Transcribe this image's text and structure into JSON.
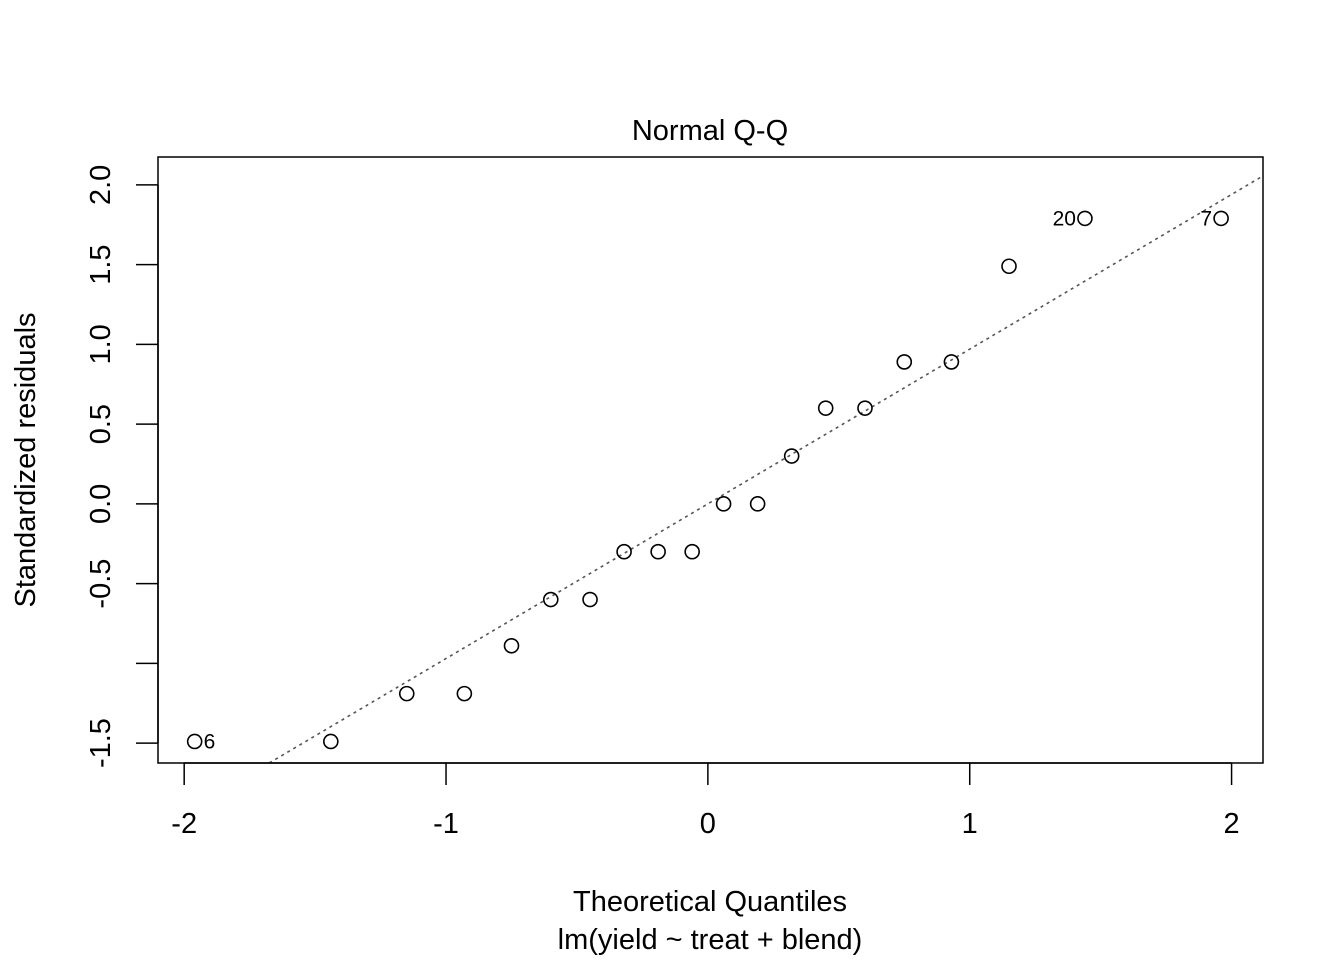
{
  "chart_data": {
    "type": "scatter",
    "title": "Normal Q-Q",
    "xlabel": "Theoretical Quantiles",
    "sub_caption": "lm(yield ~ treat + blend)",
    "ylabel": "Standardized residuals",
    "xlim": [
      -2.1,
      2.12
    ],
    "ylim": [
      -1.625,
      2.175
    ],
    "x_ticks": [
      -2,
      -1,
      0,
      1,
      2
    ],
    "x_tick_labels": [
      "-2",
      "-1",
      "0",
      "1",
      "2"
    ],
    "y_ticks": [
      -1.5,
      -1.0,
      -0.5,
      0.0,
      0.5,
      1.0,
      1.5,
      2.0
    ],
    "y_tick_labels": [
      "-1.5",
      "",
      "-0.5",
      "0.0",
      "0.5",
      "1.0",
      "1.5",
      "2.0"
    ],
    "grid": false,
    "points": [
      {
        "x": -1.96,
        "y": -1.49,
        "label": "6"
      },
      {
        "x": -1.44,
        "y": -1.49
      },
      {
        "x": -1.15,
        "y": -1.19
      },
      {
        "x": -0.93,
        "y": -1.19
      },
      {
        "x": -0.75,
        "y": -0.89
      },
      {
        "x": -0.6,
        "y": -0.6
      },
      {
        "x": -0.45,
        "y": -0.6
      },
      {
        "x": -0.32,
        "y": -0.3
      },
      {
        "x": -0.19,
        "y": -0.3
      },
      {
        "x": -0.06,
        "y": -0.3
      },
      {
        "x": 0.06,
        "y": 0.0
      },
      {
        "x": 0.19,
        "y": 0.0
      },
      {
        "x": 0.32,
        "y": 0.3
      },
      {
        "x": 0.45,
        "y": 0.6
      },
      {
        "x": 0.6,
        "y": 0.6
      },
      {
        "x": 0.75,
        "y": 0.89
      },
      {
        "x": 0.93,
        "y": 0.89
      },
      {
        "x": 1.15,
        "y": 1.49
      },
      {
        "x": 1.44,
        "y": 1.79,
        "label": "20"
      },
      {
        "x": 1.96,
        "y": 1.79,
        "label": "7"
      }
    ],
    "reference_line": {
      "style": "dotted",
      "color": "#555555",
      "intercept": 0.0,
      "slope": 0.97
    }
  }
}
